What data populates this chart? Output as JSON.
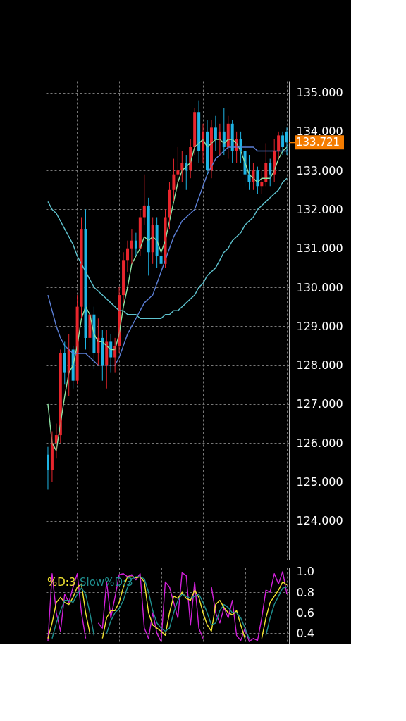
{
  "chart_data": [
    {
      "type": "candlestick",
      "categories": [
        null,
        null,
        null,
        null,
        null,
        null,
        null,
        null,
        null,
        null,
        null,
        null,
        null,
        null,
        null,
        null,
        null,
        null,
        null,
        null,
        null,
        null,
        null,
        null,
        null,
        null,
        null,
        null,
        null,
        null,
        null,
        null,
        null,
        null,
        null,
        null,
        null,
        null,
        null,
        null,
        null,
        null,
        null,
        null,
        null,
        null,
        null,
        null,
        null,
        null,
        null,
        null,
        null,
        null,
        null,
        null,
        null,
        null
      ],
      "ohlc": [
        [
          125.7,
          125.9,
          124.8,
          125.3
        ],
        [
          125.3,
          126.3,
          125.0,
          126.0
        ],
        [
          126.0,
          126.5,
          125.6,
          126.2
        ],
        [
          126.2,
          128.4,
          126.0,
          128.3
        ],
        [
          128.3,
          128.6,
          127.5,
          127.8
        ],
        [
          127.8,
          128.8,
          127.2,
          128.4
        ],
        [
          128.4,
          128.5,
          127.4,
          127.6
        ],
        [
          127.6,
          129.8,
          127.5,
          129.5
        ],
        [
          129.5,
          131.8,
          129.2,
          131.5
        ],
        [
          131.5,
          132.0,
          128.4,
          128.7
        ],
        [
          128.7,
          129.6,
          128.2,
          129.3
        ],
        [
          129.3,
          129.5,
          127.9,
          128.3
        ],
        [
          128.3,
          129.2,
          128.0,
          128.7
        ],
        [
          128.7,
          128.9,
          127.6,
          128.0
        ],
        [
          128.0,
          128.9,
          127.4,
          128.6
        ],
        [
          128.6,
          128.8,
          127.8,
          128.2
        ],
        [
          128.2,
          128.7,
          127.8,
          128.5
        ],
        [
          128.5,
          130.0,
          128.3,
          129.8
        ],
        [
          129.8,
          130.9,
          129.6,
          130.7
        ],
        [
          130.7,
          131.2,
          130.4,
          131.0
        ],
        [
          131.0,
          131.5,
          130.6,
          131.2
        ],
        [
          131.2,
          131.4,
          130.8,
          131.0
        ],
        [
          131.0,
          132.0,
          130.8,
          131.8
        ],
        [
          131.8,
          132.9,
          131.6,
          132.1
        ],
        [
          132.1,
          132.3,
          130.3,
          130.9
        ],
        [
          130.9,
          131.8,
          130.6,
          131.6
        ],
        [
          131.6,
          131.8,
          130.5,
          130.8
        ],
        [
          130.8,
          131.0,
          130.4,
          130.6
        ],
        [
          130.6,
          132.0,
          130.5,
          131.8
        ],
        [
          131.8,
          132.7,
          131.5,
          132.5
        ],
        [
          132.5,
          133.3,
          132.2,
          132.9
        ],
        [
          132.9,
          133.6,
          132.6,
          133.0
        ],
        [
          133.0,
          133.5,
          132.7,
          133.2
        ],
        [
          133.2,
          133.4,
          132.5,
          133.0
        ],
        [
          133.0,
          133.8,
          132.8,
          133.6
        ],
        [
          133.6,
          134.6,
          133.4,
          134.5
        ],
        [
          134.5,
          134.8,
          133.2,
          133.5
        ],
        [
          133.5,
          134.2,
          133.2,
          134.0
        ],
        [
          134.0,
          134.3,
          132.9,
          133.0
        ],
        [
          133.0,
          134.3,
          132.8,
          134.1
        ],
        [
          134.1,
          134.4,
          133.5,
          133.8
        ],
        [
          133.8,
          134.2,
          133.4,
          134.0
        ],
        [
          134.0,
          134.6,
          133.4,
          133.6
        ],
        [
          133.6,
          134.4,
          133.3,
          134.2
        ],
        [
          134.2,
          134.3,
          133.2,
          133.5
        ],
        [
          133.5,
          134.0,
          133.2,
          133.8
        ],
        [
          133.8,
          134.0,
          133.2,
          133.5
        ],
        [
          133.5,
          133.7,
          132.6,
          132.9
        ],
        [
          132.9,
          133.4,
          132.5,
          132.7
        ],
        [
          132.7,
          133.2,
          132.5,
          133.0
        ],
        [
          133.0,
          133.1,
          132.4,
          132.6
        ],
        [
          132.6,
          133.0,
          132.4,
          132.7
        ],
        [
          132.7,
          133.7,
          132.6,
          133.2
        ],
        [
          133.2,
          133.3,
          132.6,
          132.9
        ],
        [
          132.9,
          133.8,
          132.7,
          133.5
        ],
        [
          133.5,
          134.0,
          133.3,
          133.9
        ],
        [
          133.9,
          134.0,
          133.4,
          133.6
        ],
        [
          134.0,
          134.1,
          133.4,
          133.721
        ]
      ],
      "colors": [
        "#1fb4e4",
        "#e8262d",
        "#e8262d",
        "#e8262d",
        "#1fb4e4",
        "#e8262d",
        "#1fb4e4",
        "#e8262d",
        "#e8262d",
        "#1fb4e4",
        "#e8262d",
        "#1fb4e4",
        "#e8262d",
        "#1fb4e4",
        "#e8262d",
        "#1fb4e4",
        "#e8262d",
        "#e8262d",
        "#e8262d",
        "#e8262d",
        "#e8262d",
        "#1fb4e4",
        "#e8262d",
        "#e8262d",
        "#1fb4e4",
        "#e8262d",
        "#1fb4e4",
        "#1fb4e4",
        "#e8262d",
        "#e8262d",
        "#e8262d",
        "#e8262d",
        "#e8262d",
        "#1fb4e4",
        "#e8262d",
        "#e8262d",
        "#1fb4e4",
        "#e8262d",
        "#1fb4e4",
        "#e8262d",
        "#1fb4e4",
        "#e8262d",
        "#1fb4e4",
        "#e8262d",
        "#1fb4e4",
        "#e8262d",
        "#1fb4e4",
        "#1fb4e4",
        "#1fb4e4",
        "#e8262d",
        "#1fb4e4",
        "#e8262d",
        "#e8262d",
        "#1fb4e4",
        "#e8262d",
        "#e8262d",
        "#1fb4e4",
        "#1fb4e4"
      ],
      "series": [
        {
          "type": "line",
          "color": "#8fe3a4",
          "values": [
            127.0,
            126.0,
            125.8,
            126.5,
            127.2,
            127.8,
            128.0,
            128.5,
            129.2,
            129.5,
            129.3,
            128.8,
            128.6,
            128.6,
            128.5,
            128.4,
            128.4,
            128.8,
            129.5,
            130.0,
            130.6,
            130.8,
            131.0,
            131.3,
            131.2,
            131.3,
            131.2,
            130.9,
            131.2,
            131.7,
            132.2,
            132.7,
            133.0,
            133.1,
            133.2,
            133.6,
            133.7,
            133.8,
            133.6,
            133.7,
            133.8,
            133.8,
            133.7,
            133.8,
            133.8,
            133.7,
            133.5,
            133.2,
            132.9,
            132.8,
            132.7,
            132.8,
            132.8,
            132.8,
            133.0,
            133.3,
            133.5,
            133.6
          ]
        },
        {
          "type": "line",
          "color": "#5b7fd6",
          "values": [
            129.8,
            129.4,
            129.0,
            128.7,
            128.5,
            128.4,
            128.3,
            128.3,
            128.3,
            128.3,
            128.2,
            128.1,
            128.0,
            128.0,
            128.0,
            128.0,
            128.0,
            128.2,
            128.5,
            128.8,
            129.0,
            129.2,
            129.4,
            129.6,
            129.7,
            129.8,
            130.1,
            130.4,
            130.7,
            131.0,
            131.3,
            131.5,
            131.7,
            131.8,
            131.9,
            132.0,
            132.3,
            132.6,
            132.9,
            133.1,
            133.3,
            133.4,
            133.5,
            133.6,
            133.6,
            133.6,
            133.6,
            133.6,
            133.6,
            133.6,
            133.5,
            133.5,
            133.5,
            133.5,
            133.5,
            133.5,
            133.5,
            133.5
          ]
        },
        {
          "type": "line",
          "color": "#5ec3cf",
          "values": [
            132.2,
            132.0,
            131.9,
            131.7,
            131.5,
            131.3,
            131.1,
            130.8,
            130.6,
            130.4,
            130.2,
            130.0,
            129.9,
            129.8,
            129.7,
            129.6,
            129.5,
            129.4,
            129.4,
            129.3,
            129.3,
            129.3,
            129.2,
            129.2,
            129.2,
            129.2,
            129.2,
            129.2,
            129.3,
            129.3,
            129.4,
            129.4,
            129.5,
            129.6,
            129.7,
            129.8,
            130.0,
            130.1,
            130.3,
            130.4,
            130.5,
            130.7,
            130.9,
            131.0,
            131.2,
            131.3,
            131.4,
            131.6,
            131.7,
            131.8,
            132.0,
            132.1,
            132.2,
            132.3,
            132.4,
            132.5,
            132.7,
            132.8
          ]
        }
      ],
      "ylim": [
        123.0,
        135.3
      ],
      "yticks": [
        {
          "value": 124,
          "label": "124.000"
        },
        {
          "value": 125,
          "label": "125.000"
        },
        {
          "value": 126,
          "label": "126.000"
        },
        {
          "value": 127,
          "label": "127.000"
        },
        {
          "value": 128,
          "label": "128.000"
        },
        {
          "value": 129,
          "label": "129.000"
        },
        {
          "value": 130,
          "label": "130.000"
        },
        {
          "value": 131,
          "label": "131.000"
        },
        {
          "value": 132,
          "label": "132.000"
        },
        {
          "value": 133,
          "label": "133.000"
        },
        {
          "value": 134,
          "label": "134.000"
        },
        {
          "value": 135,
          "label": "135.000"
        }
      ],
      "ref_lines": [
        {
          "axis": "y",
          "value": 133.721,
          "label": "133.721",
          "color": "#f57c00"
        }
      ],
      "grid": true,
      "tick_labels": "y"
    },
    {
      "type": "line",
      "categories": [
        null,
        null,
        null,
        null,
        null,
        null,
        null,
        null,
        null,
        null,
        null,
        null,
        null,
        null,
        null,
        null,
        null,
        null,
        null,
        null,
        null,
        null,
        null,
        null,
        null,
        null,
        null,
        null,
        null,
        null,
        null,
        null,
        null,
        null,
        null,
        null,
        null,
        null,
        null,
        null,
        null,
        null,
        null,
        null,
        null,
        null,
        null,
        null,
        null,
        null,
        null,
        null,
        null,
        null,
        null,
        null,
        null,
        null
      ],
      "series": [
        {
          "color": "#d020d8",
          "values": [
            0.32,
            0.98,
            0.6,
            0.42,
            0.78,
            0.7,
            0.85,
            0.98,
            0.6,
            0.35,
            null,
            null,
            0.5,
            0.45,
            0.9,
            0.55,
            0.75,
            0.97,
            0.98,
            0.95,
            0.97,
            0.92,
            0.98,
            0.45,
            0.35,
            0.6,
            0.4,
            0.32,
            0.9,
            0.85,
            0.7,
            0.55,
            0.99,
            0.96,
            0.48,
            0.9,
            0.45,
            0.35,
            null,
            0.85,
            0.6,
            0.5,
            0.65,
            0.55,
            0.72,
            0.38,
            0.33,
            0.45,
            0.32,
            0.35,
            0.33,
            0.55,
            0.82,
            0.8,
            0.98,
            0.88,
            1.0,
            0.78
          ]
        },
        {
          "name": "%D:3",
          "color": "#f2e530",
          "values": [
            0.35,
            0.5,
            0.7,
            0.75,
            0.7,
            0.68,
            0.75,
            0.85,
            0.88,
            0.6,
            0.4,
            null,
            null,
            0.35,
            0.55,
            0.62,
            0.62,
            0.7,
            0.85,
            0.95,
            0.95,
            0.94,
            0.95,
            0.9,
            0.6,
            0.48,
            0.45,
            0.42,
            0.38,
            0.6,
            0.76,
            0.74,
            0.8,
            0.74,
            0.72,
            0.82,
            0.75,
            0.6,
            0.48,
            0.42,
            0.68,
            0.72,
            0.65,
            0.6,
            0.58,
            0.62,
            0.48,
            0.35,
            null,
            null,
            null,
            0.35,
            0.55,
            0.7,
            0.76,
            0.82,
            0.9,
            0.87
          ]
        },
        {
          "name": "Slow%D:3",
          "color": "#1f8f8f",
          "values": [
            null,
            0.35,
            0.5,
            0.62,
            0.72,
            0.72,
            0.7,
            0.78,
            0.84,
            0.78,
            0.6,
            0.38,
            null,
            null,
            0.4,
            0.52,
            0.6,
            0.64,
            0.72,
            0.85,
            0.93,
            0.95,
            0.95,
            0.93,
            0.8,
            0.62,
            0.5,
            0.45,
            0.42,
            0.45,
            0.6,
            0.72,
            0.78,
            0.76,
            0.74,
            0.76,
            0.78,
            0.7,
            0.6,
            0.48,
            0.5,
            0.62,
            0.68,
            0.65,
            0.6,
            0.6,
            0.55,
            0.45,
            0.35,
            null,
            null,
            null,
            0.38,
            0.55,
            0.68,
            0.76,
            0.84,
            0.85
          ]
        }
      ],
      "ylim": [
        0.3,
        1.04
      ],
      "yticks": [
        {
          "value": 0.4,
          "label": "0.4"
        },
        {
          "value": 0.6,
          "label": "0.6"
        },
        {
          "value": 0.8,
          "label": "0.8"
        },
        {
          "value": 1,
          "label": "1.0"
        }
      ],
      "legend": "top left",
      "grid": true,
      "tick_labels": "y"
    }
  ]
}
